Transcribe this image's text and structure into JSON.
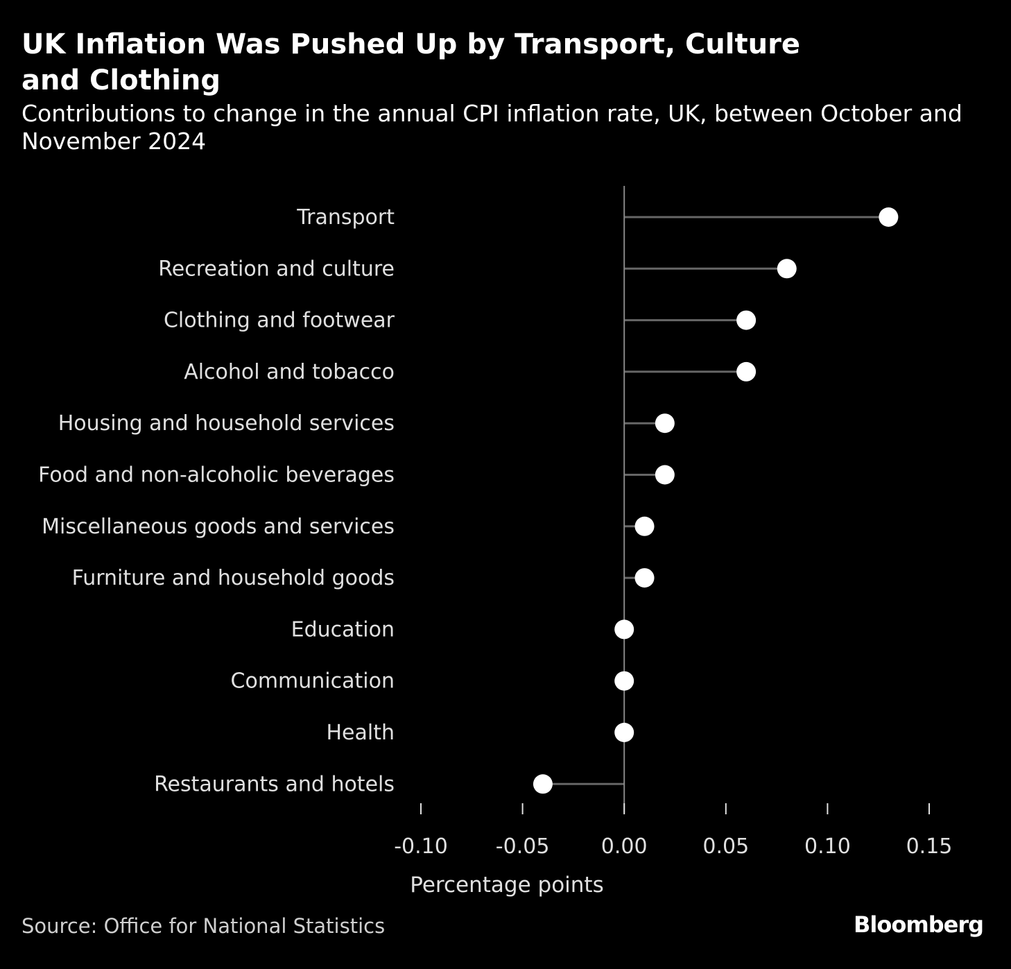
{
  "chart_data": {
    "type": "dot",
    "title": "UK Inflation Was Pushed Up by Transport, Culture and Clothing",
    "subtitle": "Contributions to change in the annual CPI inflation rate, UK, between October and November 2024",
    "xlabel": "Percentage points",
    "xlim": [
      -0.1,
      0.15
    ],
    "xticks": [
      -0.1,
      -0.05,
      0.0,
      0.05,
      0.1,
      0.15
    ],
    "xtick_labels": [
      "-0.10",
      "-0.05",
      "0.00",
      "0.05",
      "0.10",
      "0.15"
    ],
    "categories": [
      "Transport",
      "Recreation and culture",
      "Clothing and footwear",
      "Alcohol and tobacco",
      "Housing and household services",
      "Food and non-alcoholic beverages",
      "Miscellaneous goods and services",
      "Furniture and household goods",
      "Education",
      "Communication",
      "Health",
      "Restaurants and hotels"
    ],
    "values": [
      0.13,
      0.08,
      0.06,
      0.06,
      0.02,
      0.02,
      0.01,
      0.01,
      0.0,
      0.0,
      0.0,
      -0.04
    ],
    "grid": false,
    "legend": false
  },
  "footer": {
    "source": "Source: Office for National Statistics",
    "brand": "Bloomberg"
  },
  "colors": {
    "background": "#000000",
    "dot": "#ffffff",
    "stem": "#666666",
    "axis": "#888888",
    "text": "#e0e0e0"
  }
}
